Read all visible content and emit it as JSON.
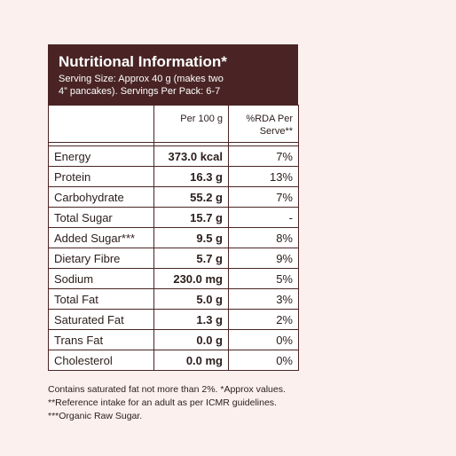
{
  "header": {
    "title": "Nutritional Information*",
    "serving_line1": "Serving Size: Approx 40 g (makes two",
    "serving_line2": "4” pancakes). Servings Per Pack: 6-7"
  },
  "table": {
    "columns": [
      "",
      "Per 100 g",
      "%RDA Per Serve**"
    ],
    "rows": [
      {
        "name": "Energy",
        "per100": "373.0 kcal",
        "rda": "7%"
      },
      {
        "name": "Protein",
        "per100": "16.3 g",
        "rda": "13%"
      },
      {
        "name": "Carbohydrate",
        "per100": "55.2 g",
        "rda": "7%"
      },
      {
        "name": "Total Sugar",
        "per100": "15.7 g",
        "rda": "-"
      },
      {
        "name": "Added Sugar***",
        "per100": "9.5 g",
        "rda": "8%"
      },
      {
        "name": "Dietary Fibre",
        "per100": "5.7 g",
        "rda": "9%"
      },
      {
        "name": "Sodium",
        "per100": "230.0 mg",
        "rda": "5%"
      },
      {
        "name": "Total Fat",
        "per100": "5.0 g",
        "rda": "3%"
      },
      {
        "name": "Saturated Fat",
        "per100": "1.3 g",
        "rda": "2%"
      },
      {
        "name": "Trans Fat",
        "per100": "0.0 g",
        "rda": "0%"
      },
      {
        "name": "Cholesterol",
        "per100": "0.0 mg",
        "rda": "0%"
      }
    ]
  },
  "footnotes": [
    "Contains saturated fat not more than 2%. *Approx values.",
    "**Reference intake for an adult as per ICMR guidelines.",
    "***Organic Raw Sugar."
  ],
  "colors": {
    "header_bg": "#4a2424",
    "page_bg": "#fbf0ee",
    "border": "#4a2424"
  }
}
